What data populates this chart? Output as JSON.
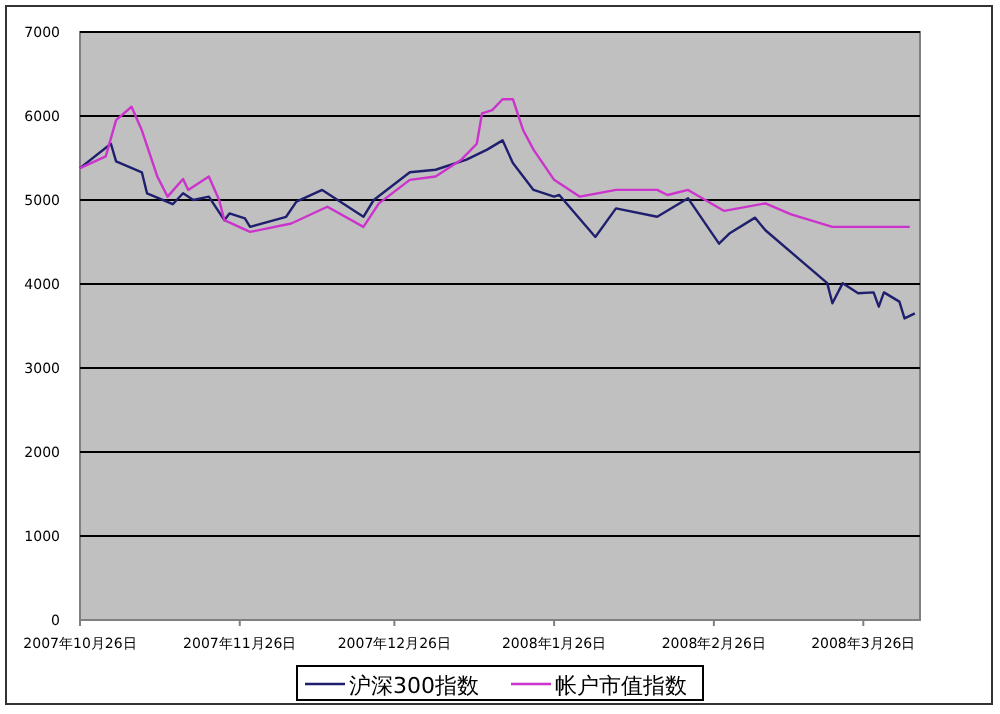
{
  "chart_data": {
    "type": "line",
    "legend": "bottom",
    "grid": "y",
    "ylim": [
      0,
      7000
    ],
    "yticks": [
      0,
      1000,
      2000,
      3000,
      4000,
      5000,
      6000,
      7000
    ],
    "xlim": [
      "2007-10-26",
      "2008-04-06"
    ],
    "xticks": [
      {
        "value": "2007-10-26",
        "label": "2007年10月26日"
      },
      {
        "value": "2007-11-26",
        "label": "2007年11月26日"
      },
      {
        "value": "2007-12-26",
        "label": "2007年12月26日"
      },
      {
        "value": "2008-01-26",
        "label": "2008年1月26日"
      },
      {
        "value": "2008-02-26",
        "label": "2008年2月26日"
      },
      {
        "value": "2008-03-26",
        "label": "2008年3月26日"
      }
    ],
    "series": [
      {
        "name": "沪深300指数",
        "color": "#1f1f6e",
        "x": [
          "2007-10-26",
          "2007-11-01",
          "2007-11-02",
          "2007-11-07",
          "2007-11-08",
          "2007-11-13",
          "2007-11-15",
          "2007-11-17",
          "2007-11-20",
          "2007-11-23",
          "2007-11-24",
          "2007-11-27",
          "2007-11-28",
          "2007-12-05",
          "2007-12-07",
          "2007-12-12",
          "2007-12-20",
          "2007-12-22",
          "2007-12-29",
          "2008-01-03",
          "2008-01-09",
          "2008-01-13",
          "2008-01-16",
          "2008-01-18",
          "2008-01-22",
          "2008-01-26",
          "2008-01-27",
          "2008-02-03",
          "2008-02-07",
          "2008-02-15",
          "2008-02-21",
          "2008-02-27",
          "2008-02-29",
          "2008-03-05",
          "2008-03-07",
          "2008-03-19",
          "2008-03-20",
          "2008-03-22",
          "2008-03-25",
          "2008-03-28",
          "2008-03-29",
          "2008-03-30",
          "2008-04-02",
          "2008-04-03",
          "2008-04-05"
        ],
        "values": [
          5380,
          5670,
          5460,
          5330,
          5080,
          4950,
          5080,
          5000,
          5040,
          4760,
          4840,
          4780,
          4680,
          4800,
          4980,
          5120,
          4800,
          5000,
          5330,
          5360,
          5480,
          5600,
          5710,
          5440,
          5120,
          5040,
          5060,
          4560,
          4900,
          4800,
          5020,
          4480,
          4600,
          4790,
          4640,
          4010,
          3770,
          4010,
          3890,
          3900,
          3730,
          3900,
          3790,
          3590,
          3650
        ]
      },
      {
        "name": "帐户市值指数",
        "color": "#cc33cc",
        "x": [
          "2007-10-26",
          "2007-10-31",
          "2007-11-02",
          "2007-11-05",
          "2007-11-07",
          "2007-11-10",
          "2007-11-12",
          "2007-11-15",
          "2007-11-16",
          "2007-11-20",
          "2007-11-22",
          "2007-11-23",
          "2007-11-28",
          "2007-12-06",
          "2007-12-13",
          "2007-12-20",
          "2007-12-23",
          "2007-12-29",
          "2008-01-03",
          "2008-01-08",
          "2008-01-11",
          "2008-01-12",
          "2008-01-14",
          "2008-01-16",
          "2008-01-17",
          "2008-01-18",
          "2008-01-20",
          "2008-01-22",
          "2008-01-26",
          "2008-01-31",
          "2008-02-07",
          "2008-02-15",
          "2008-02-17",
          "2008-02-21",
          "2008-02-28",
          "2008-03-07",
          "2008-03-12",
          "2008-03-20",
          "2008-04-04"
        ],
        "values": [
          5380,
          5520,
          5950,
          6110,
          5830,
          5280,
          5040,
          5250,
          5120,
          5280,
          5000,
          4760,
          4620,
          4720,
          4920,
          4680,
          4960,
          5240,
          5280,
          5480,
          5670,
          6030,
          6070,
          6200,
          6200,
          6200,
          5830,
          5600,
          5240,
          5040,
          5120,
          5120,
          5060,
          5120,
          4870,
          4960,
          4830,
          4680,
          4680
        ]
      }
    ]
  }
}
